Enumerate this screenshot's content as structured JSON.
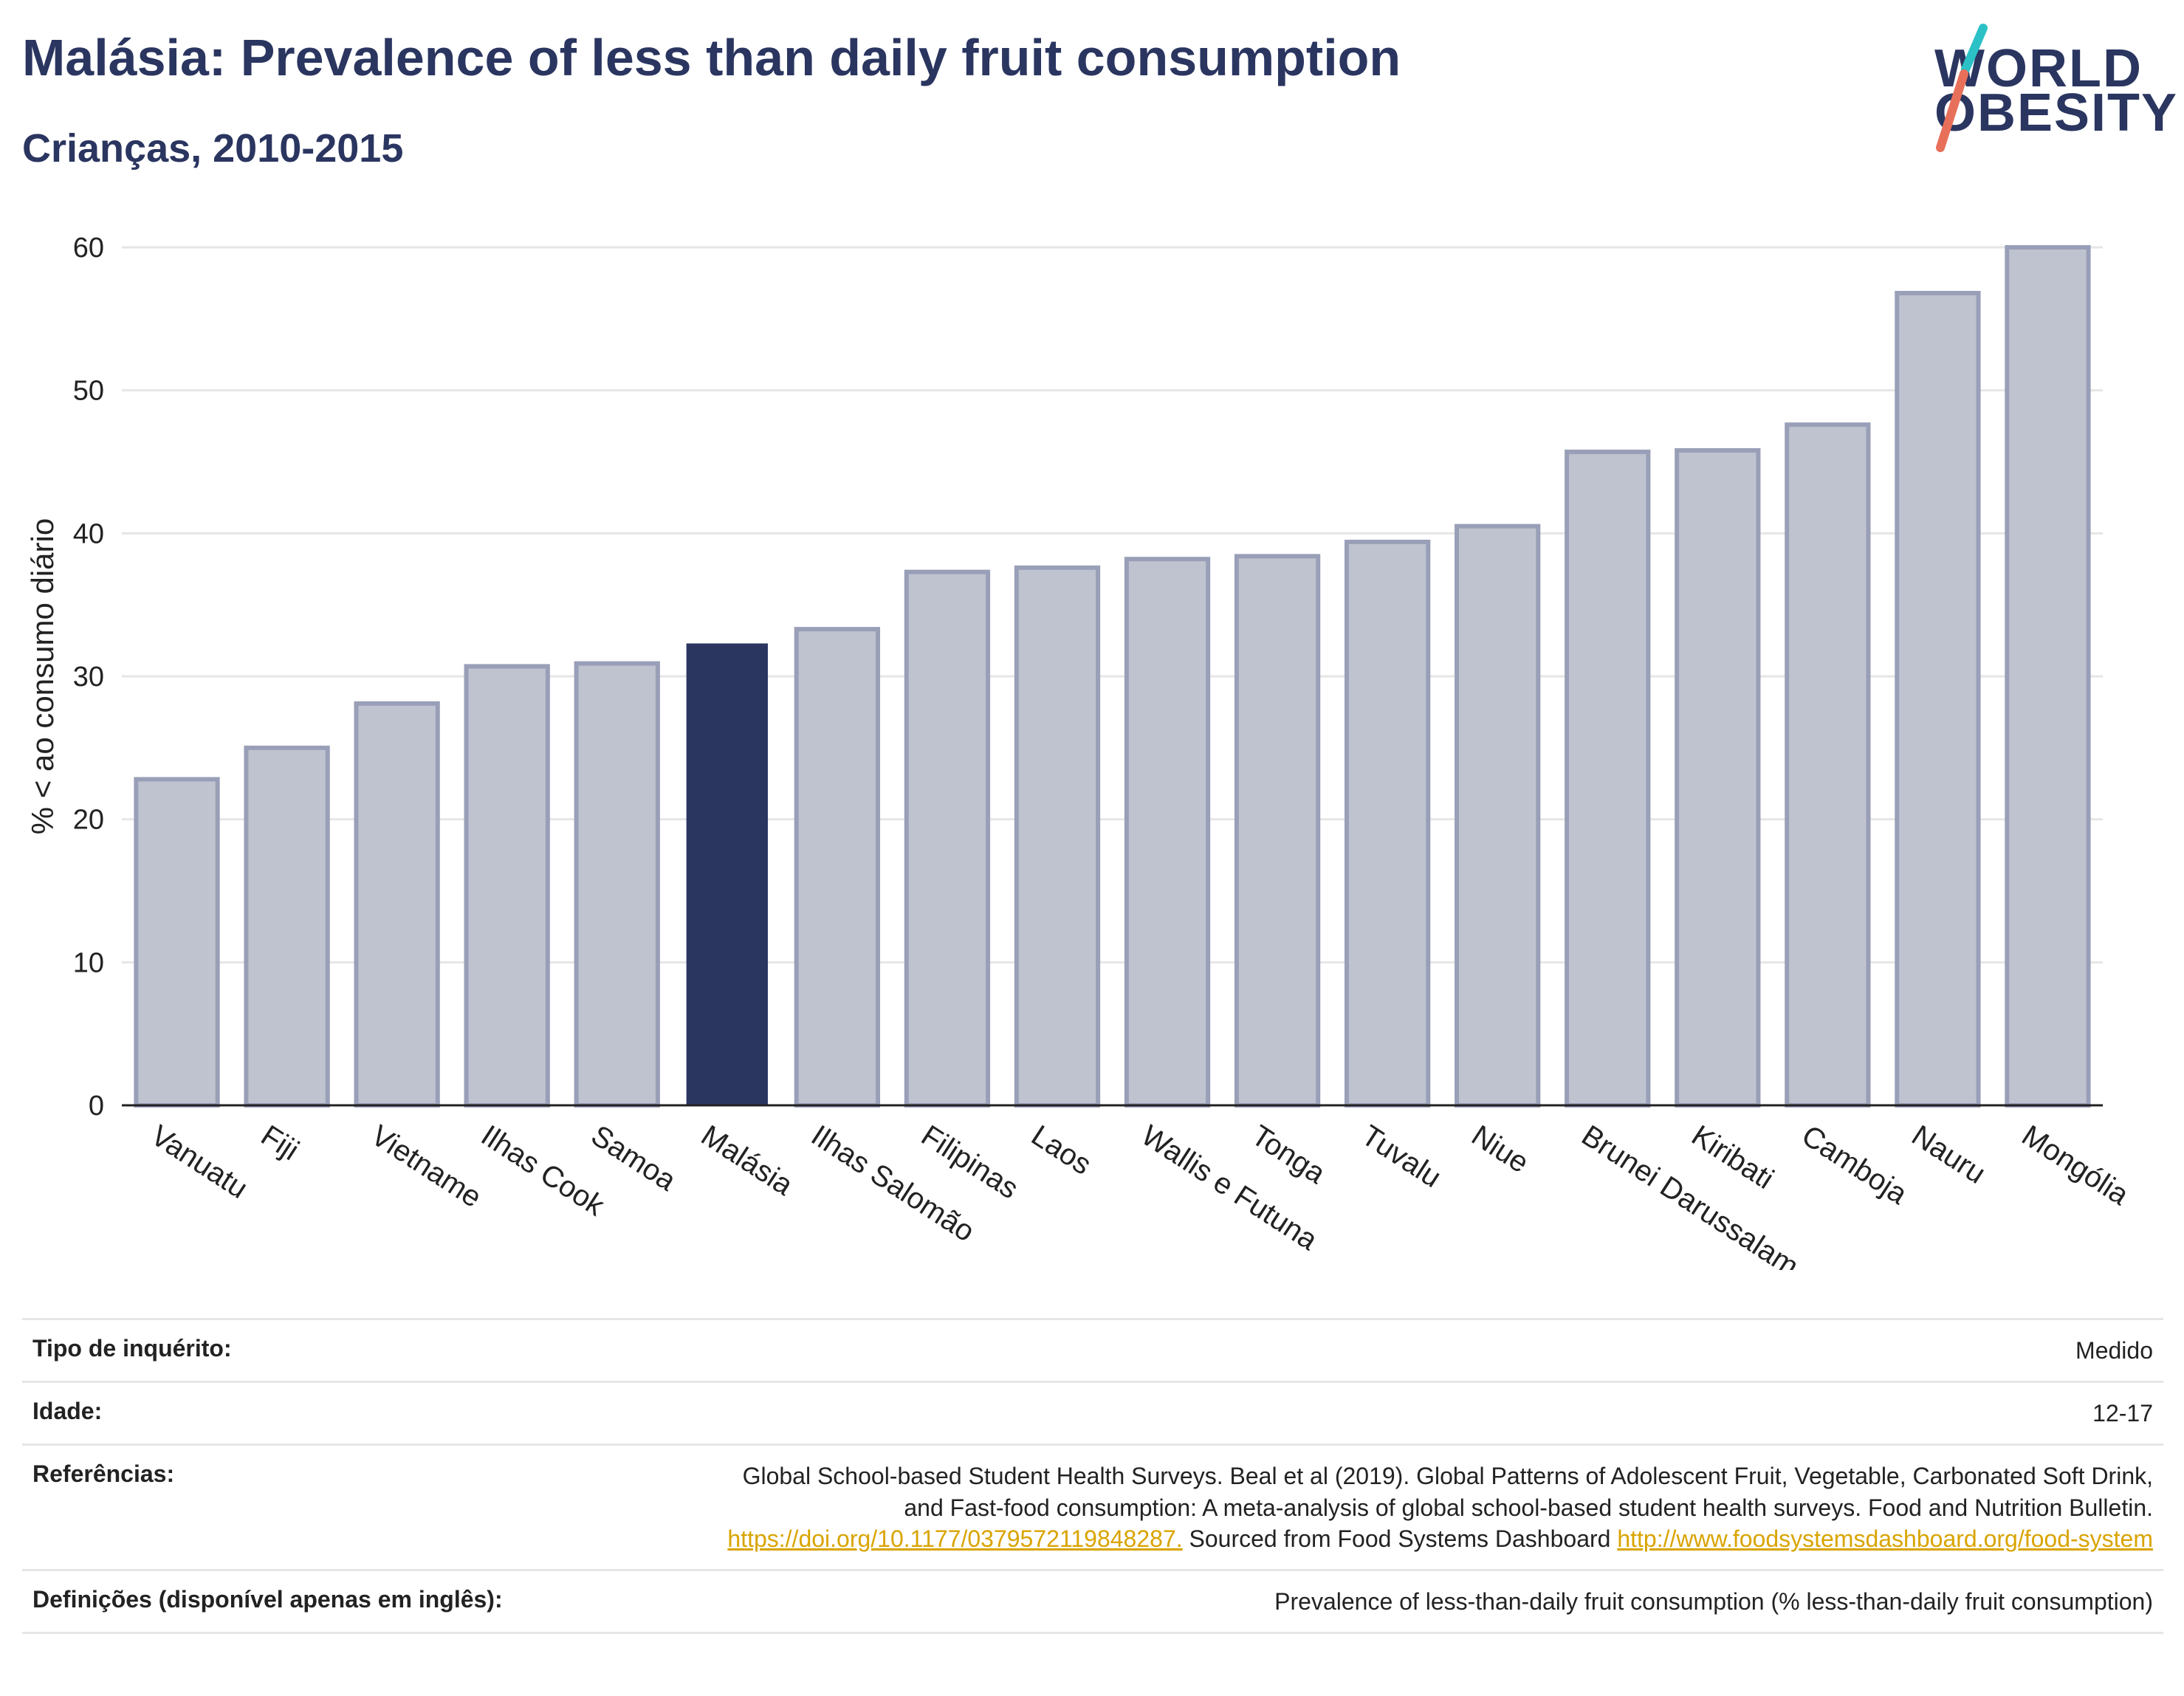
{
  "header": {
    "title": "Malásia: Prevalence of less than daily fruit consumption",
    "subtitle": "Crianças, 2010-2015"
  },
  "logo": {
    "line1": "WORLD",
    "line2": "OBESITY",
    "colors": {
      "text": "#2a3560",
      "slash_top": "#2cc1c7",
      "slash_bottom": "#e8705a"
    }
  },
  "chart_data": {
    "type": "bar",
    "title": "",
    "xlabel": "",
    "ylabel": "% < ao consumo diário",
    "ylim": [
      0,
      60
    ],
    "yticks": [
      0,
      10,
      20,
      30,
      40,
      50,
      60
    ],
    "grid": true,
    "highlight": "Malásia",
    "colors": {
      "bar": "#bfc3d0",
      "bar_edge": "#9a9fb8",
      "highlight": "#2a3560",
      "grid": "#e6e6e6",
      "axis": "#222222"
    },
    "categories": [
      "Vanuatu",
      "Fiji",
      "Vietname",
      "Ilhas Cook",
      "Samoa",
      "Malásia",
      "Ilhas Salomão",
      "Filipinas",
      "Laos",
      "Wallis e Futuna",
      "Tonga",
      "Tuvalu",
      "Niue",
      "Brunei Darussalam",
      "Kiribati",
      "Camboja",
      "Nauru",
      "Mongólia"
    ],
    "values": [
      22.8,
      25.0,
      28.1,
      30.7,
      30.9,
      32.3,
      33.3,
      37.3,
      37.6,
      38.2,
      38.4,
      39.4,
      40.5,
      45.7,
      45.8,
      47.6,
      56.8,
      60.0
    ]
  },
  "meta": {
    "survey_label": "Tipo de inquérito:",
    "survey_value": "Medido",
    "age_label": "Idade:",
    "age_value": "12-17",
    "refs_label": "Referências:",
    "refs_text_1": "Global School-based Student Health Surveys. Beal et al (2019). Global Patterns of Adolescent Fruit, Vegetable, Carbonated Soft Drink,",
    "refs_text_2": "and Fast-food consumption: A meta-analysis of global school-based student health surveys. Food and Nutrition Bulletin.",
    "refs_link_1": "https://doi.org/10.1177/0379572119848287.",
    "refs_text_3": " Sourced from Food Systems Dashboard ",
    "refs_link_2": "http://www.foodsystemsdashboard.org/food-system",
    "defs_label": "Definições (disponível apenas em inglês):",
    "defs_value": "Prevalence of less-than-daily fruit consumption (% less-than-daily fruit consumption)"
  }
}
